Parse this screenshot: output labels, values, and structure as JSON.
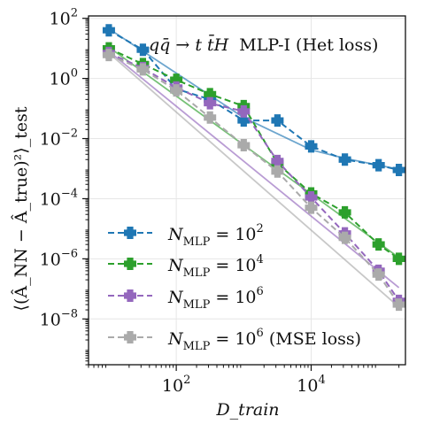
{
  "chart_data": {
    "type": "line",
    "title": "q̅q → t t̅H MLP-I (Het loss)",
    "annotation": {
      "process": "qq̄ → t t̄H",
      "model": "MLP-I (Het loss)"
    },
    "xlabel": "D_train",
    "ylabel": "⟨(Â_NN − Â_true)²⟩_test",
    "x_scale": "log",
    "y_scale": "log",
    "xlim": [
      5.0,
      250000
    ],
    "ylim": [
      3e-10,
      120
    ],
    "x_ticks": [
      {
        "value": 100,
        "base": "10",
        "exp": "2"
      },
      {
        "value": 10000,
        "base": "10",
        "exp": "4"
      }
    ],
    "y_ticks": [
      {
        "value": 1e-08,
        "base": "10",
        "exp": "−8"
      },
      {
        "value": 1e-06,
        "base": "10",
        "exp": "−6"
      },
      {
        "value": 0.0001,
        "base": "10",
        "exp": "−4"
      },
      {
        "value": 0.01,
        "base": "10",
        "exp": "−2"
      },
      {
        "value": 1,
        "base": "10",
        "exp": "0"
      },
      {
        "value": 100,
        "base": "10",
        "exp": "2"
      }
    ],
    "grid": true,
    "legend_position": "bottom-left",
    "x": [
      10,
      32,
      100,
      316,
      1000,
      3162,
      10000,
      31623,
      100000,
      200000
    ],
    "series": [
      {
        "legend": {
          "base": "N",
          "sub": "MLP",
          "rel": " = 10",
          "exp": "2",
          "suffix": ""
        },
        "color": "#1f77b4",
        "values": [
          40,
          9,
          0.45,
          0.2,
          0.04,
          0.04,
          0.0055,
          0.002,
          0.0013,
          0.0009
        ],
        "fit": [
          [
            10,
            45
          ],
          [
            100,
            1.5
          ],
          [
            1000,
            0.05
          ],
          [
            10000,
            0.0042
          ],
          [
            31623,
            0.0022
          ],
          [
            100000,
            0.0013
          ],
          [
            200000,
            0.00095
          ]
        ]
      },
      {
        "legend": {
          "base": "N",
          "sub": "MLP",
          "rel": " = 10",
          "exp": "4",
          "suffix": ""
        },
        "color": "#2ca02c",
        "values": [
          10,
          3,
          0.9,
          0.3,
          0.12,
          0.0015,
          0.00015,
          3.5e-05,
          3e-06,
          1e-06
        ],
        "fit": [
          [
            10,
            11
          ],
          [
            200000,
            1.1e-06
          ]
        ]
      },
      {
        "legend": {
          "base": "N",
          "sub": "MLP",
          "rel": " = 10",
          "exp": "6",
          "suffix": ""
        },
        "color": "#9467bd",
        "values": [
          7,
          2.2,
          0.5,
          0.15,
          0.08,
          0.0018,
          0.00011,
          7e-06,
          4e-07,
          4e-08
        ],
        "fit": [
          [
            10,
            8
          ],
          [
            200000,
            1.1e-07
          ]
        ]
      },
      {
        "legend": {
          "base": "N",
          "sub": "MLP",
          "rel": " = 10",
          "exp": "6",
          "suffix": " (MSE loss)"
        },
        "color": "#aaaaaa",
        "values": [
          6,
          2,
          0.4,
          0.05,
          0.006,
          0.0008,
          5e-05,
          5e-06,
          3e-07,
          3e-08
        ],
        "fit": [
          [
            10,
            7
          ],
          [
            200000,
            2.5e-08
          ]
        ]
      }
    ]
  }
}
